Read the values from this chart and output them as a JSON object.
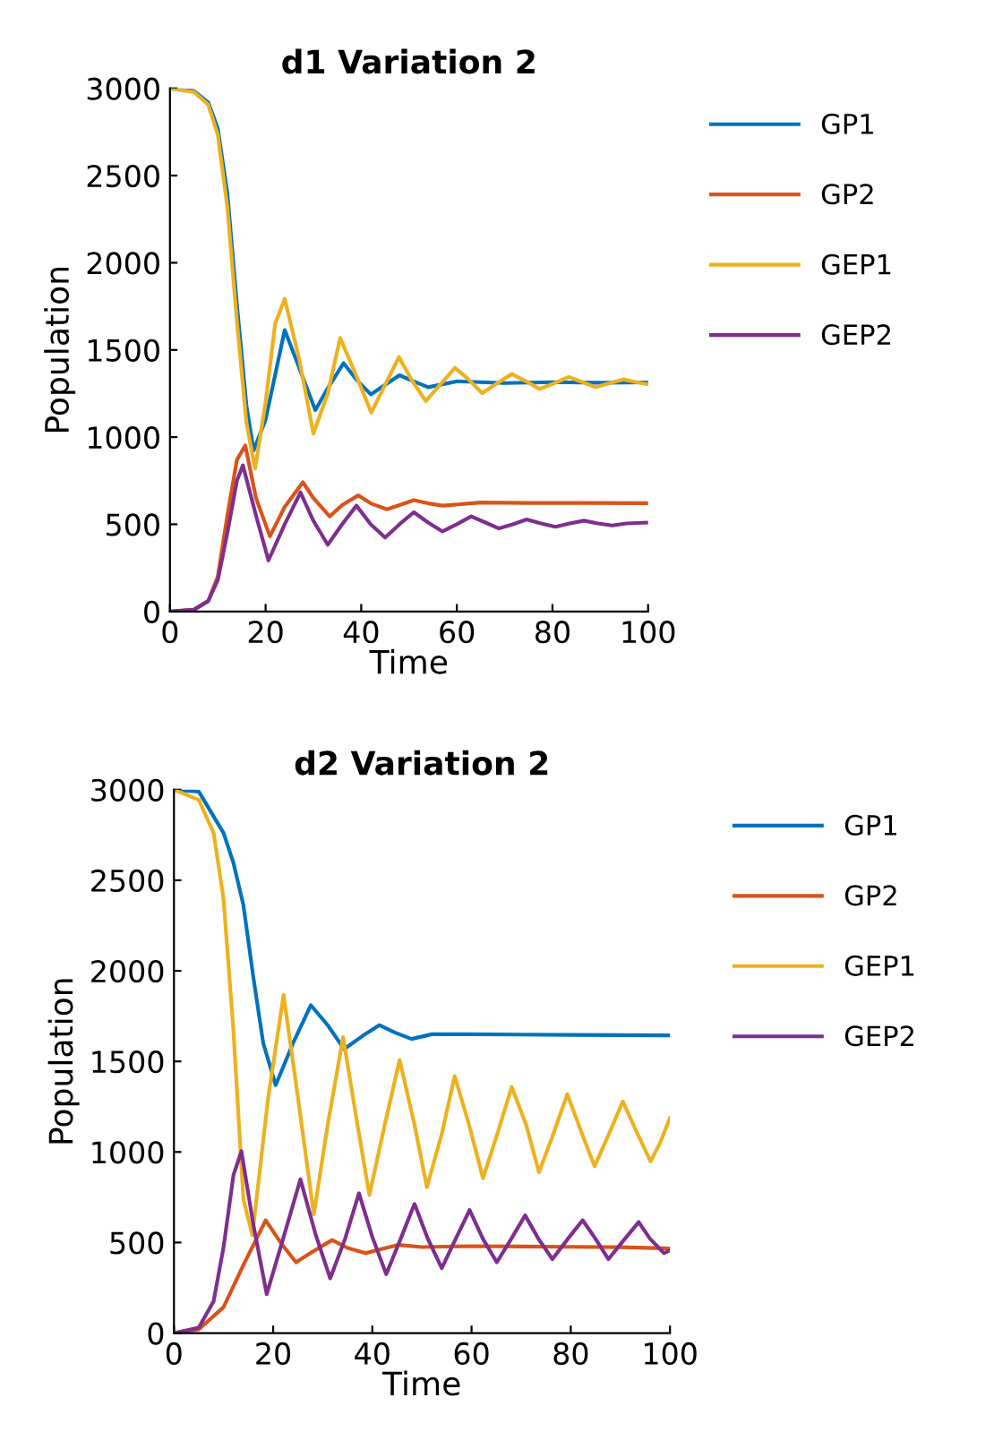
{
  "chart_data": [
    {
      "type": "line",
      "title": "d1 Variation 2",
      "xlabel": "Time",
      "ylabel": "Population",
      "xlim": [
        0,
        100
      ],
      "ylim": [
        0,
        3000
      ],
      "xticks": [
        0,
        20,
        40,
        60,
        80,
        100
      ],
      "yticks": [
        0,
        500,
        1000,
        1500,
        2000,
        2500,
        3000
      ],
      "grid": false,
      "legend": "top right",
      "marker": "none",
      "line_style": "solid",
      "series": [
        {
          "name": "GP1",
          "color": "#0072bd",
          "x": [
            0,
            5,
            8,
            10,
            12,
            14,
            16,
            17.5,
            20,
            24,
            27,
            30.4,
            33,
            36.3,
            39,
            42,
            45,
            48,
            51,
            54,
            60,
            70,
            80,
            90,
            100
          ],
          "values": [
            3000,
            2985,
            2920,
            2770,
            2400,
            1760,
            1180,
            924,
            1100,
            1614,
            1400,
            1155,
            1280,
            1424,
            1330,
            1245,
            1300,
            1355,
            1320,
            1286,
            1320,
            1310,
            1315,
            1312,
            1314
          ]
        },
        {
          "name": "GP2",
          "color": "#d95319",
          "x": [
            0,
            5,
            8,
            10,
            12,
            14,
            15.75,
            18,
            20.9,
            24,
            27.8,
            30,
            33.4,
            36,
            39.4,
            42,
            45.4,
            48,
            51,
            54,
            57,
            65,
            75,
            85,
            100
          ],
          "values": [
            0,
            10,
            60,
            200,
            550,
            870,
            952,
            650,
            431,
            600,
            741,
            650,
            545,
            610,
            666,
            620,
            586,
            610,
            638,
            620,
            607,
            625,
            622,
            622,
            621
          ]
        },
        {
          "name": "GEP1",
          "color": "#edb120",
          "x": [
            0,
            5,
            8,
            10,
            12,
            14,
            16,
            17.8,
            20,
            22,
            24,
            27,
            30,
            33,
            35.6,
            39,
            42.1,
            45,
            47.9,
            50.5,
            53.5,
            56.5,
            59.6,
            62.5,
            65.3,
            68.5,
            71.5,
            74.5,
            77.3,
            80.5,
            83.4,
            86.3,
            89,
            92,
            94.8,
            97.5,
            100
          ],
          "values": [
            3000,
            2980,
            2907,
            2734,
            2320,
            1665,
            1079,
            820,
            1200,
            1650,
            1793,
            1450,
            1020,
            1250,
            1569,
            1350,
            1141,
            1300,
            1459,
            1330,
            1207,
            1300,
            1397,
            1330,
            1252,
            1310,
            1362,
            1320,
            1276,
            1310,
            1345,
            1315,
            1286,
            1310,
            1331,
            1315,
            1303
          ]
        },
        {
          "name": "GEP2",
          "color": "#7e2f8e",
          "x": [
            0,
            5,
            8,
            10,
            12,
            14,
            15.25,
            18,
            20.6,
            24,
            27.3,
            30,
            33,
            36,
            39,
            42,
            45,
            48,
            51,
            54,
            57,
            60,
            63,
            66,
            68.8,
            71.7,
            74.6,
            77.6,
            80.6,
            83.6,
            86.6,
            89.5,
            92.5,
            95.5,
            100
          ],
          "values": [
            0,
            10,
            60,
            180,
            450,
            750,
            838,
            550,
            293,
            500,
            683,
            520,
            383,
            500,
            607,
            500,
            424,
            500,
            569,
            510,
            459,
            500,
            545,
            510,
            476,
            500,
            528,
            505,
            486,
            505,
            521,
            505,
            493,
            505,
            510
          ]
        }
      ]
    },
    {
      "type": "line",
      "title": "d2 Variation 2",
      "xlabel": "Time",
      "ylabel": "Population",
      "xlim": [
        0,
        100
      ],
      "ylim": [
        0,
        3000
      ],
      "xticks": [
        0,
        20,
        40,
        60,
        80,
        100
      ],
      "yticks": [
        0,
        500,
        1000,
        1500,
        2000,
        2500,
        3000
      ],
      "grid": false,
      "legend": "top right",
      "marker": "none",
      "line_style": "solid",
      "series": [
        {
          "name": "GP1",
          "color": "#0072bd",
          "x": [
            0,
            5,
            10,
            12,
            14,
            16,
            18,
            20.5,
            24,
            27.6,
            31,
            34.3,
            38,
            41.4,
            44.5,
            47.9,
            52,
            60,
            70,
            80,
            90,
            100
          ],
          "values": [
            3000,
            2990,
            2761,
            2595,
            2363,
            1966,
            1601,
            1369,
            1600,
            1810,
            1700,
            1568,
            1640,
            1700,
            1660,
            1624,
            1650,
            1650,
            1648,
            1646,
            1645,
            1644
          ]
        },
        {
          "name": "GP2",
          "color": "#d95319",
          "x": [
            0,
            5,
            10,
            14,
            18.5,
            21.5,
            24.6,
            28,
            31.9,
            35,
            38.6,
            42,
            45.3,
            50,
            60,
            70,
            80,
            90,
            100
          ],
          "values": [
            0,
            20,
            143,
            375,
            623,
            500,
            391,
            450,
            514,
            470,
            441,
            465,
            487,
            475,
            480,
            478,
            476,
            474,
            467
          ]
        },
        {
          "name": "GEP1",
          "color": "#edb120",
          "x": [
            0,
            5,
            8,
            10,
            12,
            14,
            15.8,
            19,
            22.1,
            25,
            28.2,
            31,
            34.1,
            37,
            39.4,
            42.5,
            45.5,
            48.5,
            51,
            54,
            56.6,
            59.5,
            62.3,
            65.2,
            68.1,
            71,
            73.6,
            76.5,
            79.3,
            82,
            84.8,
            87.7,
            90.5,
            93.3,
            96.1,
            98,
            100
          ],
          "values": [
            3000,
            2944,
            2761,
            2396,
            1667,
            739,
            540,
            1300,
            1866,
            1300,
            656,
            1150,
            1634,
            1150,
            762,
            1150,
            1508,
            1150,
            805,
            1100,
            1419,
            1150,
            855,
            1100,
            1359,
            1150,
            888,
            1100,
            1319,
            1120,
            921,
            1100,
            1279,
            1110,
            948,
            1050,
            1187
          ]
        },
        {
          "name": "GEP2",
          "color": "#7e2f8e",
          "x": [
            0,
            5,
            8,
            10,
            12,
            13.6,
            16,
            18.7,
            22,
            25.5,
            28.5,
            31.5,
            34.5,
            37.3,
            40,
            42.8,
            45.7,
            48.5,
            51.2,
            54,
            56.8,
            59.6,
            62.3,
            65.1,
            68,
            70.8,
            73.5,
            76.3,
            79.4,
            82.4,
            85,
            87.6,
            90.6,
            93.7,
            96,
            98.8,
            100
          ],
          "values": [
            0,
            30,
            176,
            474,
            872,
            1004,
            600,
            215,
            520,
            849,
            550,
            302,
            520,
            772,
            530,
            325,
            520,
            713,
            520,
            358,
            520,
            679,
            520,
            391,
            520,
            650,
            520,
            408,
            520,
            623,
            520,
            408,
            510,
            613,
            520,
            441,
            457
          ]
        }
      ]
    }
  ]
}
